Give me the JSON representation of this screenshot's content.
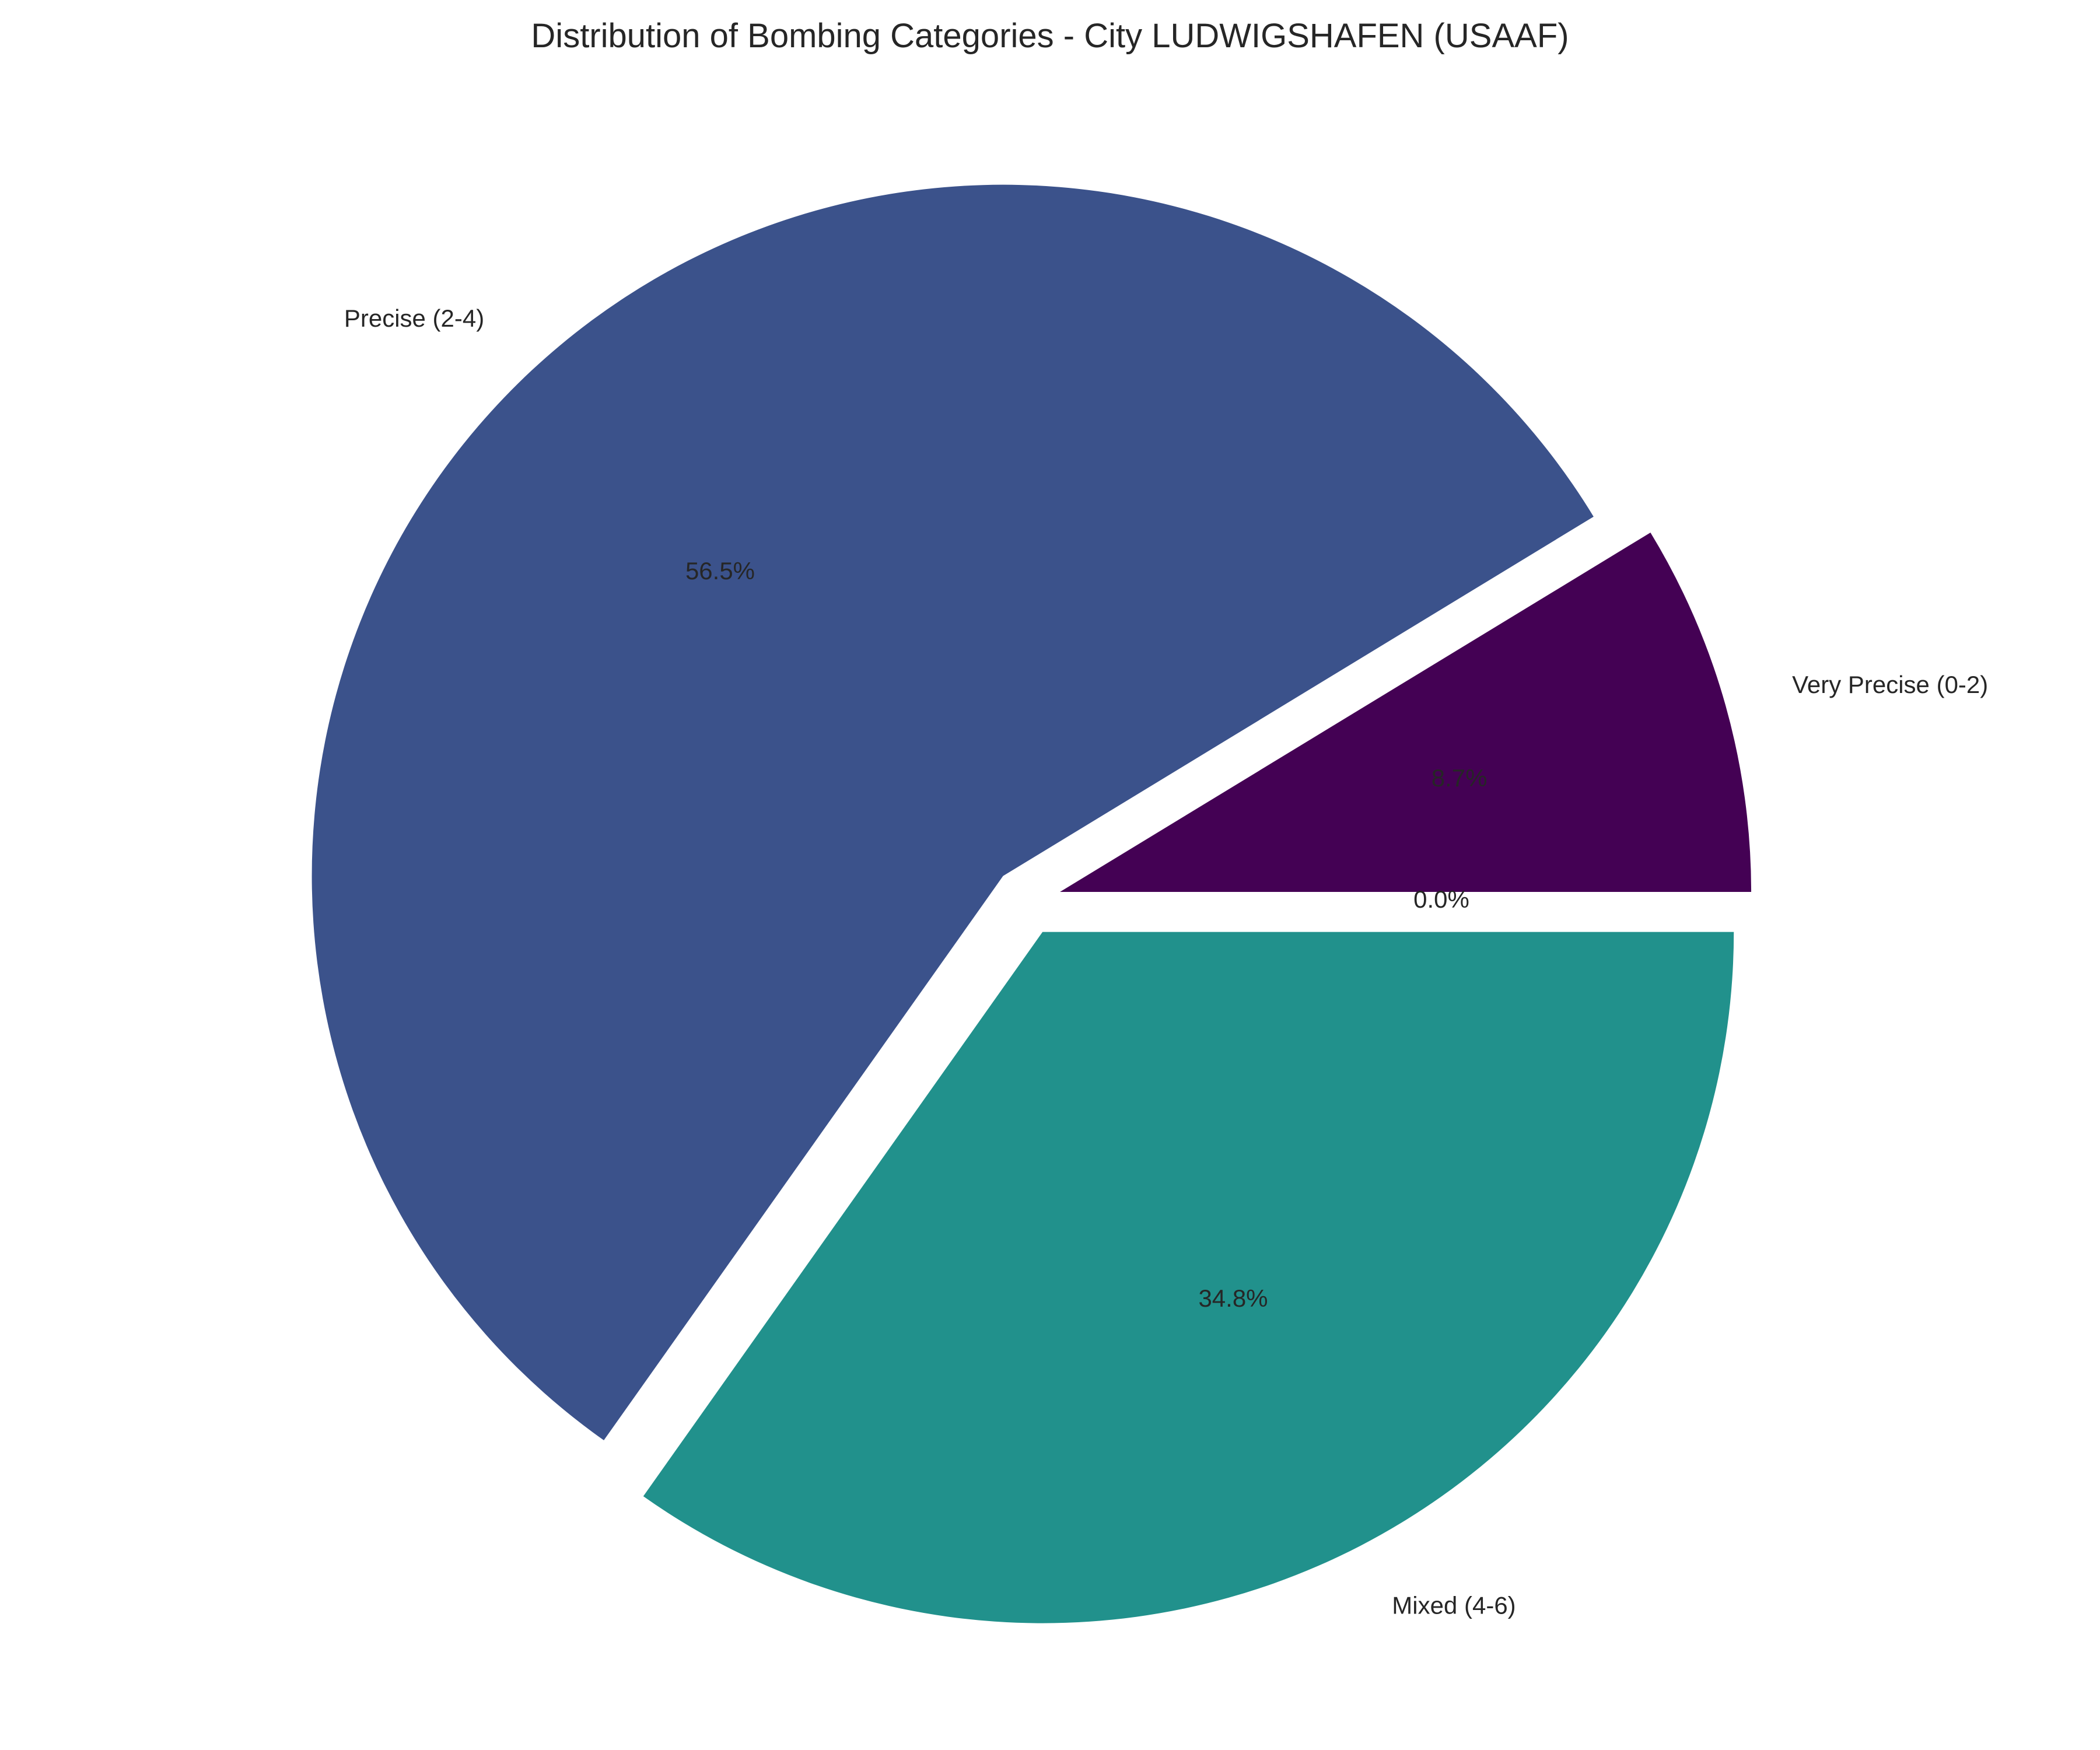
{
  "chart_data": {
    "type": "pie",
    "title": "Distribution of Bombing Categories - City LUDWIGSHAFEN (USAAF)",
    "slices": [
      {
        "label": "Very Precise (0-2)",
        "value": 8.7,
        "pct_label": "8.7%",
        "color": "#440154",
        "exploded": true
      },
      {
        "label": "Precise (2-4)",
        "value": 56.5,
        "pct_label": "56.5%",
        "color": "#3b528b",
        "exploded": true
      },
      {
        "label": "Mixed (4-6)",
        "value": 34.8,
        "pct_label": "34.8%",
        "color": "#21918c",
        "exploded": true
      },
      {
        "label": "",
        "value": 0.0,
        "pct_label": "0.0%",
        "color": "#5ec962",
        "exploded": false
      }
    ],
    "start_angle_deg": 0,
    "direction": "counterclockwise",
    "legend": "none"
  }
}
